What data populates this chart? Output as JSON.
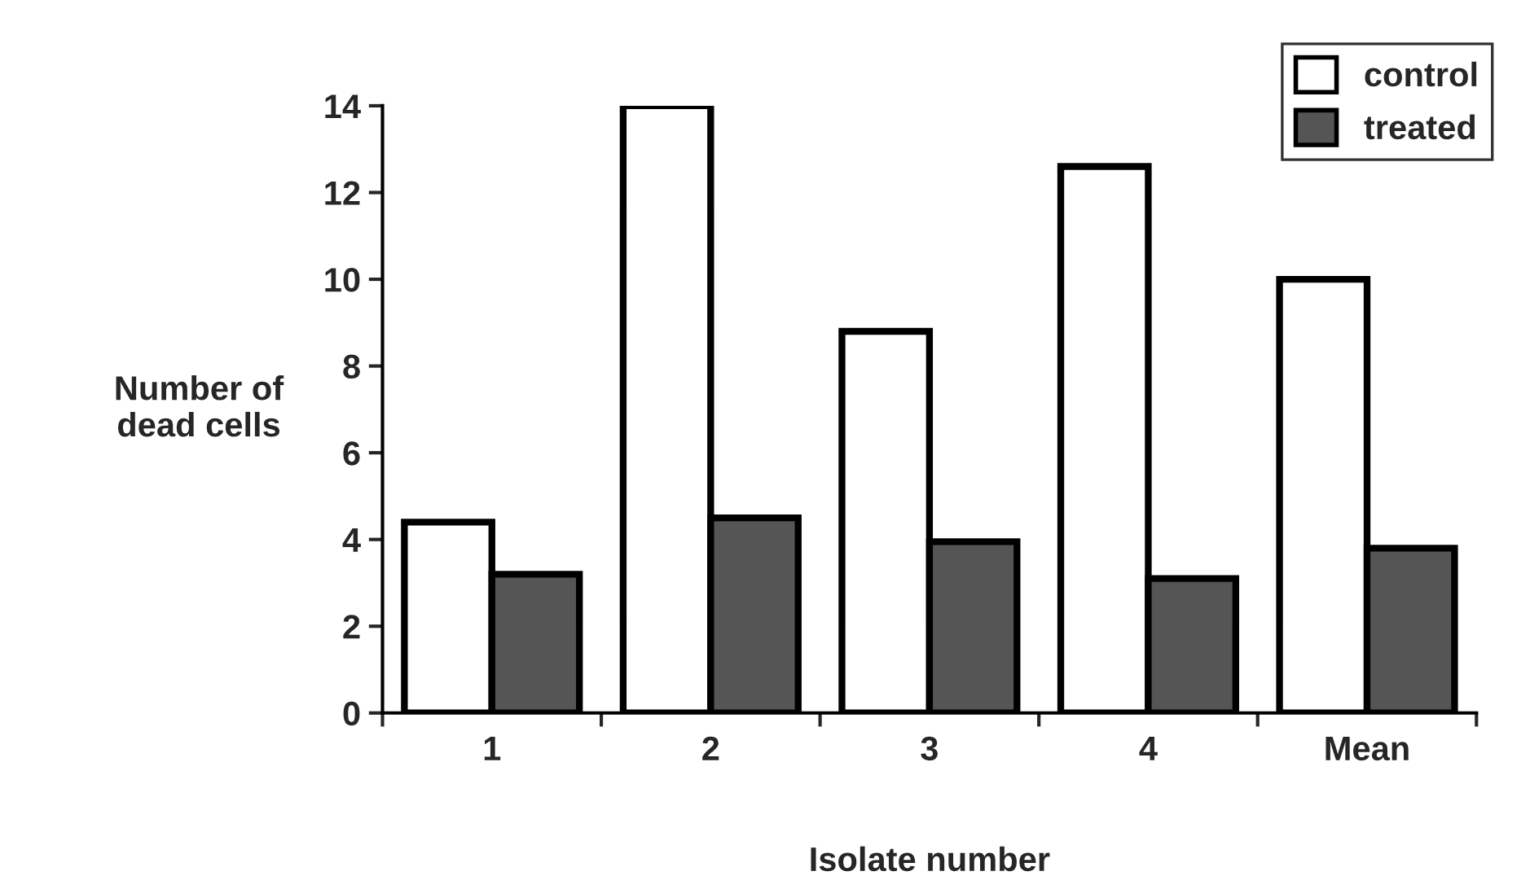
{
  "chart_data": {
    "type": "bar",
    "xlabel": "Isolate number",
    "ylabel": "Number of\ndead cells",
    "categories": [
      "1",
      "2",
      "3",
      "4",
      "Mean"
    ],
    "series": [
      {
        "name": "control",
        "color": "#ffffff",
        "values": [
          4.4,
          14.0,
          8.8,
          12.6,
          10.0
        ]
      },
      {
        "name": "treated",
        "color": "#555555",
        "values": [
          3.2,
          4.5,
          3.95,
          3.1,
          3.8
        ]
      }
    ],
    "ylim": [
      0,
      14
    ],
    "yticks": [
      0,
      2,
      4,
      6,
      8,
      10,
      12,
      14
    ],
    "grid": false,
    "legend": "top right"
  }
}
